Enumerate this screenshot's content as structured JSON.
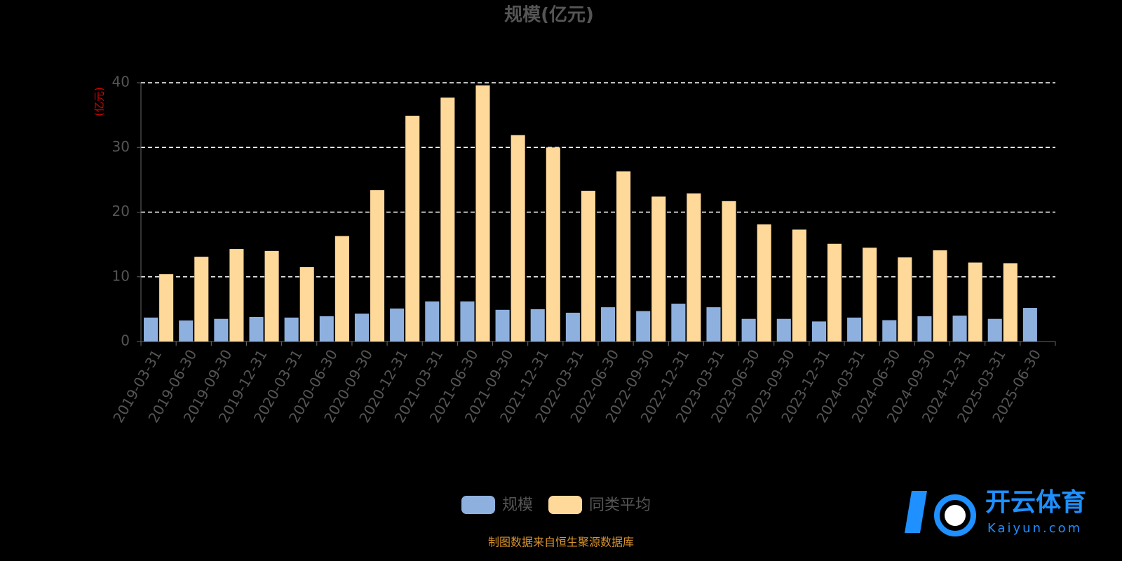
{
  "chart_data": {
    "type": "bar",
    "title": "规模(亿元)",
    "y_axis_label": "(亿元)",
    "categories": [
      "2019-03-31",
      "2019-06-30",
      "2019-09-30",
      "2019-12-31",
      "2020-03-31",
      "2020-06-30",
      "2020-09-30",
      "2020-12-31",
      "2021-03-31",
      "2021-06-30",
      "2021-09-30",
      "2021-12-31",
      "2022-03-31",
      "2022-06-30",
      "2022-09-30",
      "2022-12-31",
      "2023-03-31",
      "2023-06-30",
      "2023-09-30",
      "2023-12-31",
      "2024-03-31",
      "2024-06-30",
      "2024-09-30",
      "2024-12-31",
      "2025-03-31",
      "2025-06-30"
    ],
    "series": [
      {
        "name": "规模",
        "color": "#8eb0df",
        "values": [
          3.7,
          3.25,
          3.5,
          3.8,
          3.7,
          3.9,
          4.3,
          5.1,
          6.2,
          6.2,
          4.9,
          5.0,
          4.45,
          5.3,
          4.7,
          5.85,
          5.3,
          3.5,
          3.5,
          3.1,
          3.7,
          3.3,
          3.9,
          4.0,
          3.5,
          5.2
        ]
      },
      {
        "name": "同类平均",
        "color": "#ffd99a",
        "values": [
          10.4,
          13.1,
          14.3,
          14.0,
          11.5,
          16.3,
          23.4,
          34.9,
          37.7,
          39.6,
          31.9,
          30.0,
          23.3,
          26.3,
          22.4,
          22.9,
          21.7,
          18.1,
          17.3,
          15.1,
          14.5,
          13.0,
          14.1,
          12.2,
          12.1,
          null
        ]
      }
    ],
    "ylim": [
      0,
      40
    ],
    "yticks": [
      0,
      10,
      20,
      30,
      40
    ],
    "grid": true,
    "legend": "bottom",
    "source": "制图数据来自恒生聚源数据库"
  },
  "watermark": {
    "brand": "开云体育",
    "url": "Kaiyun.com"
  }
}
